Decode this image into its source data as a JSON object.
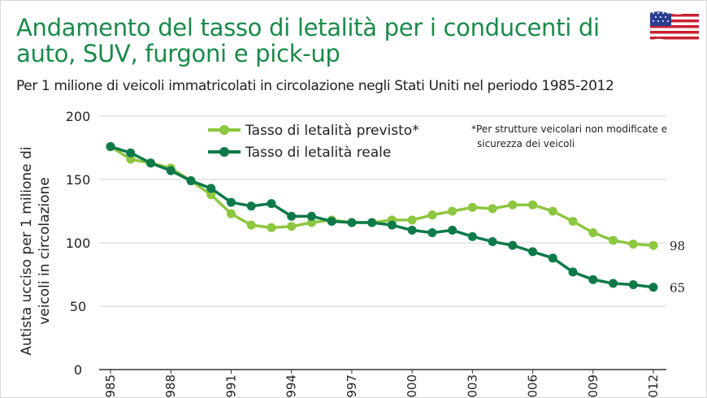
{
  "page": {
    "title": "Andamento del tasso di letalità per i conducenti di auto, SUV, furgoni e pick-up",
    "subtitle": "Per 1 milione di veicoli immatricolati in circolazione negli Stati Uniti nel periodo 1985-2012",
    "flag_icon": "us-flag-icon",
    "note_line1": "*Per strutture veicolari non modificate e",
    "note_line2": "sicurezza dei veicoli"
  },
  "chart_data": {
    "type": "line",
    "title": "Andamento del tasso di letalità per i conducenti di auto, SUV, furgoni e pick-up",
    "subtitle": "Per 1 milione di veicoli immatricolati in circolazione negli Stati Uniti nel periodo 1985-2012",
    "ylabel_line1": "Autista ucciso per 1 milione di",
    "ylabel_line2": "veicoli in circolazione",
    "xlabel": "",
    "ylim": [
      0,
      200
    ],
    "yticks": [
      0,
      50,
      100,
      150,
      200
    ],
    "xlim": [
      1985,
      2012
    ],
    "xticks": [
      "1985",
      "1988",
      "1991",
      "1994",
      "1997",
      "2000",
      "2003",
      "2006",
      "2009",
      "2012"
    ],
    "x": [
      1985,
      1986,
      1987,
      1988,
      1989,
      1990,
      1991,
      1992,
      1993,
      1994,
      1995,
      1996,
      1997,
      1998,
      1999,
      2000,
      2001,
      2002,
      2003,
      2004,
      2005,
      2006,
      2007,
      2008,
      2009,
      2010,
      2011,
      2012
    ],
    "grid": true,
    "legend_position": "top-left",
    "series": [
      {
        "name": "Tasso di letalità previsto*",
        "color": "#8dc63f",
        "values": [
          176,
          166,
          163,
          159,
          149,
          138,
          123,
          114,
          112,
          113,
          116,
          118,
          116,
          116,
          118,
          118,
          122,
          125,
          128,
          127,
          130,
          130,
          125,
          117,
          108,
          102,
          99,
          98
        ],
        "end_label": "98"
      },
      {
        "name": "Tasso di letalità reale",
        "color": "#0e7a4a",
        "values": [
          176,
          171,
          163,
          157,
          149,
          143,
          132,
          129,
          131,
          121,
          121,
          117,
          116,
          116,
          114,
          110,
          108,
          110,
          105,
          101,
          98,
          93,
          88,
          77,
          71,
          68,
          67,
          65
        ],
        "end_label": "65"
      }
    ]
  }
}
